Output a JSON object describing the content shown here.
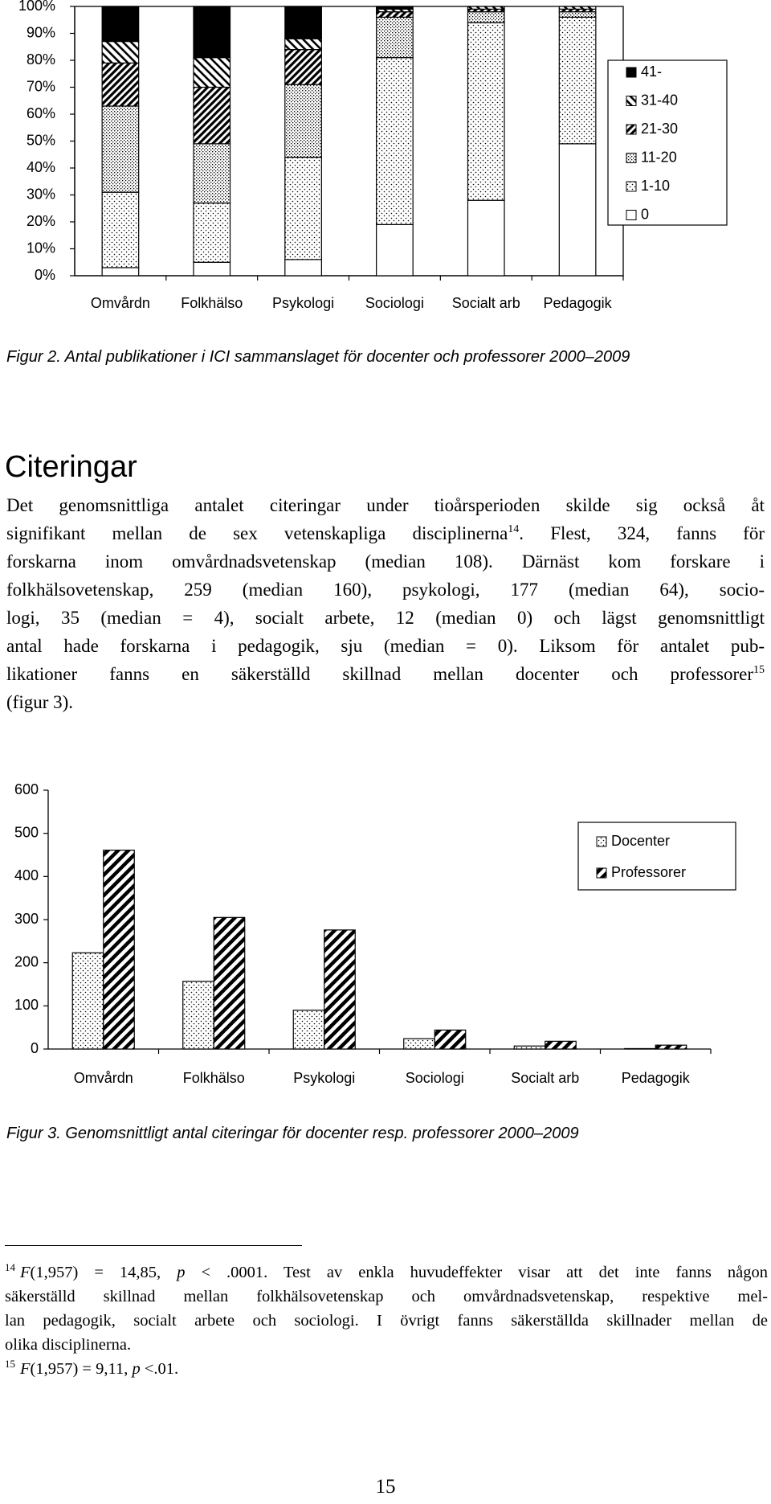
{
  "chart_data": [
    {
      "type": "stacked_bar",
      "title": "Figur 2. Antal publikationer i ICI sammanslaget för docenter och professorer 2000–2009",
      "categories": [
        "Omvårdn",
        "Folkhälso",
        "Psykologi",
        "Sociologi",
        "Socialt arb",
        "Pedagogik"
      ],
      "series": [
        {
          "name": "0",
          "pattern": "white",
          "values": [
            3,
            5,
            6,
            19,
            28,
            49
          ]
        },
        {
          "name": "1-10",
          "pattern": "dots",
          "values": [
            28,
            22,
            38,
            62,
            66,
            47
          ]
        },
        {
          "name": "11-20",
          "pattern": "fine-dots",
          "values": [
            32,
            22,
            27,
            15,
            4,
            2
          ]
        },
        {
          "name": "21-30",
          "pattern": "hatch-back",
          "values": [
            16,
            21,
            13,
            2,
            1,
            1
          ]
        },
        {
          "name": "31-40",
          "pattern": "hatch-forward",
          "values": [
            8,
            11,
            4,
            1,
            1,
            1
          ]
        },
        {
          "name": "41-",
          "pattern": "black",
          "values": [
            13,
            19,
            12,
            1,
            0,
            0
          ]
        }
      ],
      "ylim": [
        0,
        100
      ],
      "yticks": [
        {
          "value": 0,
          "label": "0%"
        },
        {
          "value": 10,
          "label": "10%"
        },
        {
          "value": 20,
          "label": "20%"
        },
        {
          "value": 30,
          "label": "30%"
        },
        {
          "value": 40,
          "label": "40%"
        },
        {
          "value": 50,
          "label": "50%"
        },
        {
          "value": 60,
          "label": "60%"
        },
        {
          "value": 70,
          "label": "70%"
        },
        {
          "value": 80,
          "label": "80%"
        },
        {
          "value": 90,
          "label": "90%"
        },
        {
          "value": 100,
          "label": "100%"
        }
      ],
      "grid": false,
      "legend": "right",
      "legend_order": "reversed"
    },
    {
      "type": "bar",
      "title": "Figur 3. Genomsnittligt antal citeringar för docenter resp. professorer 2000–2009",
      "categories": [
        "Omvårdn",
        "Folkhälso",
        "Psykologi",
        "Sociologi",
        "Socialt arb",
        "Pedagogik"
      ],
      "series": [
        {
          "name": "Docenter",
          "pattern": "dots",
          "values": [
            223,
            157,
            90,
            24,
            7,
            1
          ]
        },
        {
          "name": "Professorer",
          "pattern": "hatch-thick",
          "values": [
            461,
            305,
            276,
            44,
            18,
            9
          ]
        }
      ],
      "ylim": [
        0,
        600
      ],
      "yticks": [
        0,
        100,
        200,
        300,
        400,
        500,
        600
      ],
      "grid": false,
      "legend": "upper right",
      "legend_order": "normal"
    }
  ],
  "heading": "Citeringar",
  "paragraph": [
    [
      {
        "text": "Det genomsnittliga antalet citeringar under tioårsperioden skilde sig också åt"
      }
    ],
    [
      {
        "text": "signifikant mellan de sex vetenskapliga disciplinerna"
      },
      {
        "text": "14",
        "style": "sup"
      },
      {
        "text": ". Flest, 324, fanns för"
      }
    ],
    [
      {
        "text": "forskarna inom omvårdnadsvetenskap (median 108). Därnäst kom forskare i"
      }
    ],
    [
      {
        "text": "folkhälsovetenskap, 259 (median 160), psykologi, 177 (median 64), socio-"
      }
    ],
    [
      {
        "text": "logi, 35 (median = 4), socialt arbete, 12 (median 0) och lägst genomsnittligt"
      }
    ],
    [
      {
        "text": "antal hade forskarna i pedagogik, sju (median = 0). Liksom för antalet pub-"
      }
    ],
    [
      {
        "text": "likationer fanns en säkerställd skillnad mellan docenter och professorer"
      },
      {
        "text": "15",
        "style": "sup"
      }
    ],
    [
      {
        "text": "(figur 3)."
      }
    ]
  ],
  "footnotes": [
    [
      {
        "text": "14",
        "style": "sup"
      },
      {
        "text": "F",
        "style": "italic"
      },
      {
        "text": "(1,957) = 14,85, "
      },
      {
        "text": "p",
        "style": "italic"
      },
      {
        "text": " < .0001. Test av enkla huvudeffekter visar att det inte fanns någon"
      }
    ],
    [
      {
        "text": "säkerställd skillnad mellan folkhälsovetenskap och omvårdnadsvetenskap, respektive mel-"
      }
    ],
    [
      {
        "text": "lan pedagogik, socialt arbete och sociologi. I övrigt fanns säkerställda skillnader mellan de"
      }
    ],
    [
      {
        "text": "olika disciplinerna."
      }
    ],
    [
      {
        "text": "15",
        "style": "sup"
      },
      {
        "text": "F",
        "style": "italic"
      },
      {
        "text": "(1,957) = 9,11, "
      },
      {
        "text": "p",
        "style": "italic"
      },
      {
        "text": " <.01."
      }
    ]
  ],
  "page_number": "15"
}
